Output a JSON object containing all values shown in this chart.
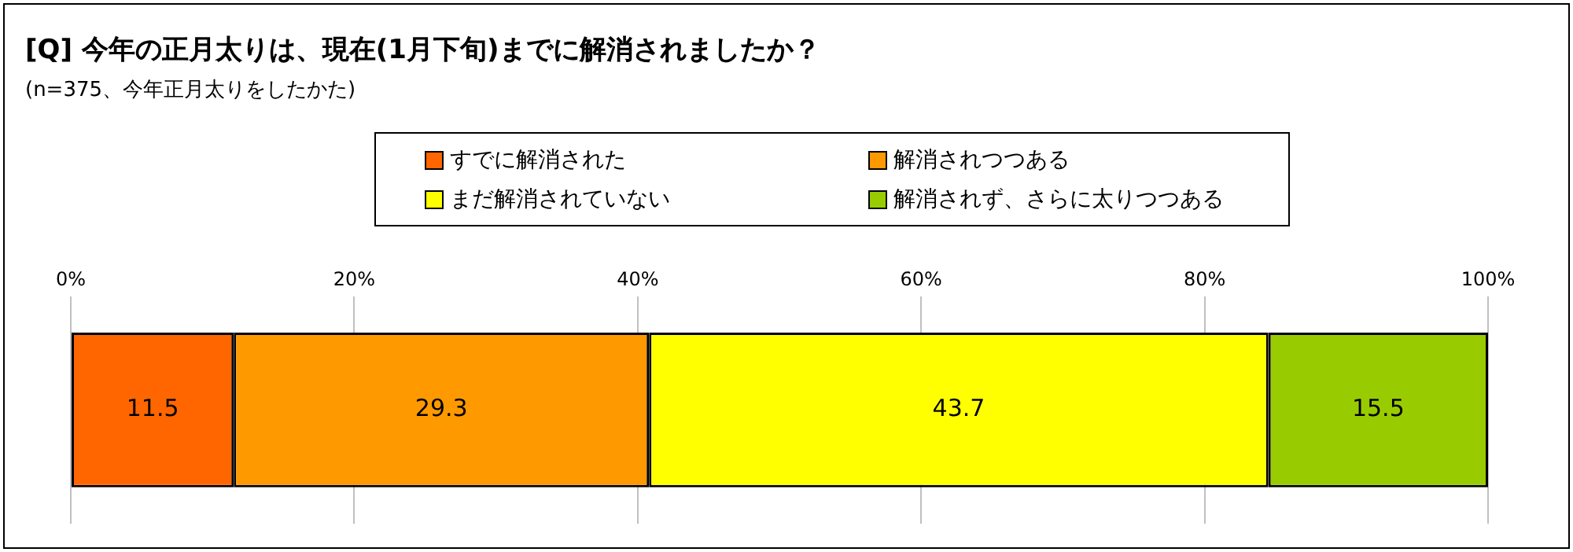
{
  "chart_data": {
    "type": "bar",
    "title": "[Q] 今年の正月太りは、現在(1月下旬)までに解消されましたか？",
    "subtitle": "(n=375、今年正月太りをしたかた)",
    "orientation": "horizontal",
    "stacked": true,
    "categories": [
      null
    ],
    "series": [
      {
        "name": "すでに解消された",
        "color": "#ff6600",
        "values": [
          11.5
        ]
      },
      {
        "name": "解消されつつある",
        "color": "#ff9900",
        "values": [
          29.3
        ]
      },
      {
        "name": "まだ解消されていない",
        "color": "#ffff00",
        "values": [
          43.7
        ]
      },
      {
        "name": "解消されず、さらに太りつつある",
        "color": "#99cc00",
        "values": [
          15.5
        ]
      }
    ],
    "xlim": [
      0,
      100
    ],
    "xticks": [
      {
        "value": 0,
        "label": "0%"
      },
      {
        "value": 20,
        "label": "20%"
      },
      {
        "value": 40,
        "label": "40%"
      },
      {
        "value": 60,
        "label": "60%"
      },
      {
        "value": 80,
        "label": "80%"
      },
      {
        "value": 100,
        "label": "100%"
      }
    ],
    "grid": "x",
    "legend": "top",
    "data_labels": true
  }
}
